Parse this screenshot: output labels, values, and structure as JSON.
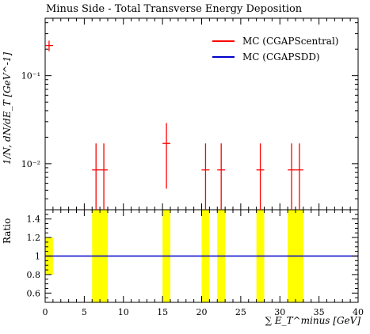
{
  "title": "Minus Side - Total Transverse Energy Deposition",
  "ylabel_main": "1/N, dN/dE_T [GeV^-1]",
  "ylabel_ratio": "Ratio",
  "xlabel": "∑ E_T^minus [GeV]",
  "legend": [
    {
      "label": "MC (CGAPScentral)",
      "color": "#ff0000"
    },
    {
      "label": "MC (CGAPSDD)",
      "color": "#0000cc"
    }
  ],
  "chart_data": [
    {
      "type": "scatter",
      "panel": "main",
      "title": "Minus Side - Total Transverse Energy Deposition",
      "xlabel": "∑ E_T^minus [GeV]",
      "ylabel": "1/N, dN/dE_T [GeV^-1]",
      "xlim": [
        0,
        40
      ],
      "ylim": [
        0.003,
        0.45
      ],
      "yscale": "log",
      "xticks": [
        0,
        5,
        10,
        15,
        20,
        25,
        30,
        35,
        40
      ],
      "yticks": [
        {
          "value": 0.01,
          "label": "10⁻²"
        },
        {
          "value": 0.1,
          "label": "10⁻¹"
        }
      ],
      "series": [
        {
          "name": "MC (CGAPScentral)",
          "color": "#ff0000",
          "points": [
            {
              "x": 0.5,
              "xerr": 0.5,
              "y": 0.22,
              "ylo": 0.19,
              "yhi": 0.25
            },
            {
              "x": 6.5,
              "xerr": 0.5,
              "y": 0.0085,
              "ylo": 0.003,
              "yhi": 0.017
            },
            {
              "x": 7.5,
              "xerr": 0.5,
              "y": 0.0085,
              "ylo": 0.003,
              "yhi": 0.017
            },
            {
              "x": 15.5,
              "xerr": 0.5,
              "y": 0.017,
              "ylo": 0.0052,
              "yhi": 0.029
            },
            {
              "x": 20.5,
              "xerr": 0.5,
              "y": 0.0085,
              "ylo": 0.003,
              "yhi": 0.017
            },
            {
              "x": 22.5,
              "xerr": 0.5,
              "y": 0.0085,
              "ylo": 0.003,
              "yhi": 0.017
            },
            {
              "x": 27.5,
              "xerr": 0.5,
              "y": 0.0085,
              "ylo": 0.003,
              "yhi": 0.017
            },
            {
              "x": 31.5,
              "xerr": 0.5,
              "y": 0.0085,
              "ylo": 0.003,
              "yhi": 0.017
            },
            {
              "x": 32.5,
              "xerr": 0.5,
              "y": 0.0085,
              "ylo": 0.003,
              "yhi": 0.017
            }
          ]
        },
        {
          "name": "MC (CGAPSDD)",
          "color": "#0000cc",
          "points": []
        }
      ]
    },
    {
      "type": "area",
      "panel": "ratio",
      "xlabel": "∑ E_T^minus [GeV]",
      "ylabel": "Ratio",
      "xlim": [
        0,
        40
      ],
      "ylim": [
        0.5,
        1.5
      ],
      "xticks": [
        0,
        5,
        10,
        15,
        20,
        25,
        30,
        35,
        40
      ],
      "yticks": [
        0.6,
        0.8,
        1,
        1.2,
        1.4
      ],
      "band_color": "#ffff00",
      "bands": [
        {
          "x0": 0,
          "x1": 1,
          "ylo": 0.8,
          "yhi": 1.2
        },
        {
          "x0": 6,
          "x1": 8,
          "ylo": 0.5,
          "yhi": 1.5
        },
        {
          "x0": 15,
          "x1": 16,
          "ylo": 0.5,
          "yhi": 1.5
        },
        {
          "x0": 20,
          "x1": 21,
          "ylo": 0.5,
          "yhi": 1.5
        },
        {
          "x0": 22,
          "x1": 23,
          "ylo": 0.5,
          "yhi": 1.5
        },
        {
          "x0": 27,
          "x1": 28,
          "ylo": 0.5,
          "yhi": 1.5
        },
        {
          "x0": 31,
          "x1": 33,
          "ylo": 0.5,
          "yhi": 1.5
        }
      ],
      "reference_line": {
        "y": 1,
        "color": "#0000cc"
      }
    }
  ]
}
